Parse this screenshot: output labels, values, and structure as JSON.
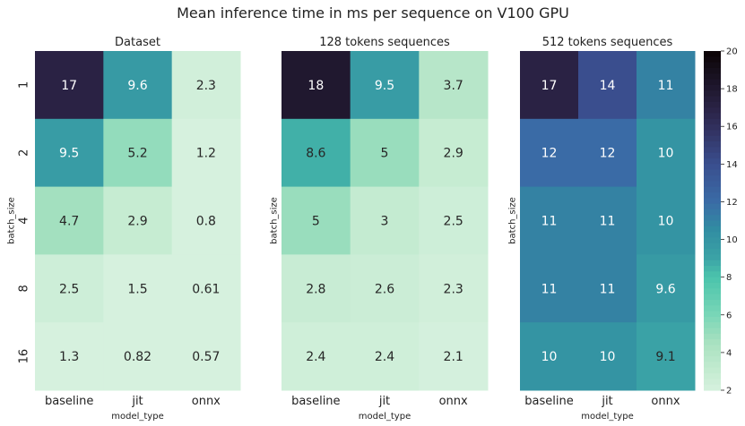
{
  "figure": {
    "suptitle": "Mean inference time in ms per sequence on V100 GPU"
  },
  "chart_data": [
    {
      "type": "heatmap",
      "title": "Dataset",
      "xlabel": "model_type",
      "ylabel": "batch_size",
      "x": [
        "baseline",
        "jit",
        "onnx"
      ],
      "y": [
        "1",
        "2",
        "4",
        "8",
        "16"
      ],
      "values": [
        [
          17,
          9.6,
          2.3
        ],
        [
          9.5,
          5.2,
          1.2
        ],
        [
          4.7,
          2.9,
          0.8
        ],
        [
          2.5,
          1.5,
          0.61
        ],
        [
          1.3,
          0.82,
          0.57
        ]
      ],
      "labels": [
        [
          "17",
          "9.6",
          "2.3"
        ],
        [
          "9.5",
          "5.2",
          "1.2"
        ],
        [
          "4.7",
          "2.9",
          "0.8"
        ],
        [
          "2.5",
          "1.5",
          "0.61"
        ],
        [
          "1.3",
          "0.82",
          "0.57"
        ]
      ],
      "color_range": [
        2,
        20
      ]
    },
    {
      "type": "heatmap",
      "title": "128 tokens sequences",
      "xlabel": "model_type",
      "ylabel": "batch_size",
      "x": [
        "baseline",
        "jit",
        "onnx"
      ],
      "y": [
        "1",
        "2",
        "4",
        "8",
        "16"
      ],
      "values": [
        [
          18,
          9.5,
          3.7
        ],
        [
          8.6,
          5,
          2.9
        ],
        [
          5,
          3,
          2.5
        ],
        [
          2.8,
          2.6,
          2.3
        ],
        [
          2.4,
          2.4,
          2.1
        ]
      ],
      "labels": [
        [
          "18",
          "9.5",
          "3.7"
        ],
        [
          "8.6",
          "5",
          "2.9"
        ],
        [
          "5",
          "3",
          "2.5"
        ],
        [
          "2.8",
          "2.6",
          "2.3"
        ],
        [
          "2.4",
          "2.4",
          "2.1"
        ]
      ],
      "color_range": [
        2,
        20
      ]
    },
    {
      "type": "heatmap",
      "title": "512 tokens sequences",
      "xlabel": "model_type",
      "ylabel": "batch_size",
      "x": [
        "baseline",
        "jit",
        "onnx"
      ],
      "y": [
        "1",
        "2",
        "4",
        "8",
        "16"
      ],
      "values": [
        [
          17,
          14,
          11
        ],
        [
          12,
          12,
          10
        ],
        [
          11,
          11,
          10
        ],
        [
          11,
          11,
          9.6
        ],
        [
          10,
          10,
          9.1
        ]
      ],
      "labels": [
        [
          "17",
          "14",
          "11"
        ],
        [
          "12",
          "12",
          "10"
        ],
        [
          "11",
          "11",
          "10"
        ],
        [
          "11",
          "11",
          "9.6"
        ],
        [
          "10",
          "10",
          "9.1"
        ]
      ],
      "color_range": [
        2,
        20
      ],
      "colorbar": {
        "ticks": [
          "2",
          "4",
          "6",
          "8",
          "10",
          "12",
          "14",
          "16",
          "18",
          "20"
        ]
      }
    }
  ],
  "colormap": {
    "name": "mako_r",
    "stops": [
      {
        "value": 2,
        "color": "#d6f1de"
      },
      {
        "value": 3,
        "color": "#c4ebd1"
      },
      {
        "value": 4.5,
        "color": "#a9e1c0"
      },
      {
        "value": 6,
        "color": "#79d6b7"
      },
      {
        "value": 8,
        "color": "#4bc4ac"
      },
      {
        "value": 9,
        "color": "#3ba3a6"
      },
      {
        "value": 10.5,
        "color": "#318da2"
      },
      {
        "value": 12,
        "color": "#3a6ba6"
      },
      {
        "value": 14,
        "color": "#3a4e8e"
      },
      {
        "value": 16,
        "color": "#312f5c"
      },
      {
        "value": 17,
        "color": "#2a2244"
      },
      {
        "value": 20,
        "color": "#0b0405"
      }
    ]
  }
}
